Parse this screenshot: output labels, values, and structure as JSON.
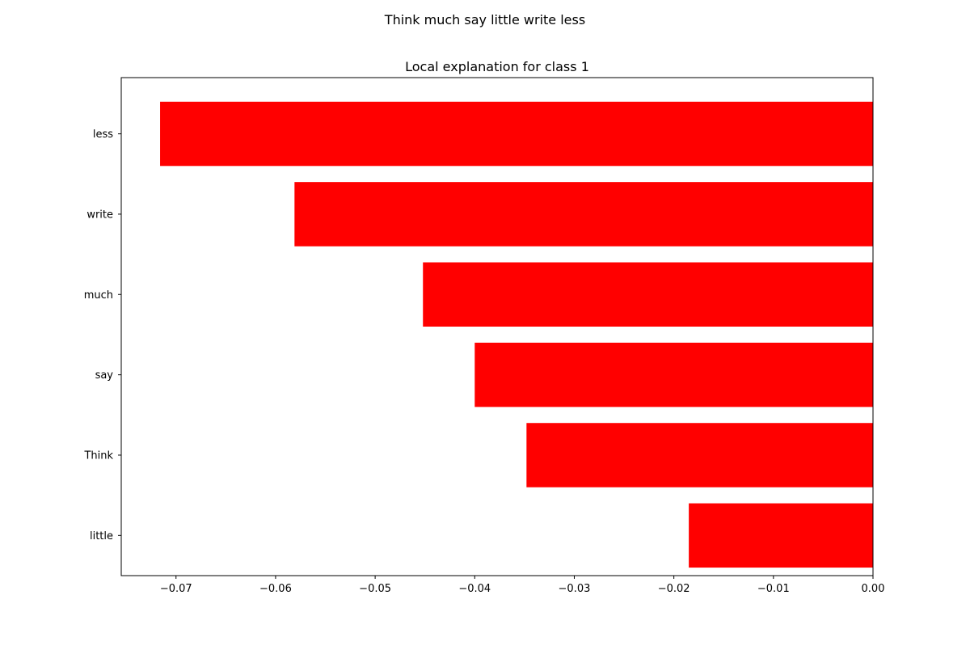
{
  "figure": {
    "suptitle": "Think much say little write less"
  },
  "chart_data": {
    "type": "bar",
    "orientation": "horizontal",
    "title": "Local explanation for class 1",
    "xlabel": "",
    "ylabel": "",
    "categories": [
      "less",
      "write",
      "much",
      "say",
      "Think",
      "little"
    ],
    "values": [
      -0.0716,
      -0.0581,
      -0.0452,
      -0.04,
      -0.0348,
      -0.0185
    ],
    "xlim": [
      -0.0755,
      0.0
    ],
    "x_ticks": [
      -0.07,
      -0.06,
      -0.05,
      -0.04,
      -0.03,
      -0.02,
      -0.01,
      0.0
    ],
    "x_tick_labels": [
      "−0.07",
      "−0.06",
      "−0.05",
      "−0.04",
      "−0.03",
      "−0.02",
      "−0.01",
      "0.00"
    ],
    "grid": false,
    "bar_color": "#ff0000"
  }
}
